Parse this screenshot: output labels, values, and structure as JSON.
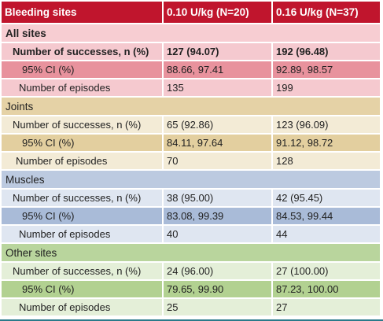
{
  "header": [
    "Bleeding sites",
    "0.10 U/kg (N=20)",
    "0.16 U/kg (N=37)"
  ],
  "sections": [
    {
      "title": "All sites",
      "title_bold": true,
      "colors": {
        "section": "#f7cdd2",
        "rows": [
          "#f5c9cf",
          "#e8929d",
          "#f5c9cf"
        ]
      },
      "rows": [
        {
          "label": "Number of successes, n (%)",
          "v1": "127 (94.07)",
          "v2": "192 (96.48)",
          "bold": true,
          "indent": 14
        },
        {
          "label": "95% CI (%)",
          "v1": "88.66, 97.41",
          "v2": "92.89, 98.57",
          "bold": false,
          "indent": 26
        },
        {
          "label": "Number of episodes",
          "v1": "135",
          "v2": "199",
          "bold": false,
          "indent": 22
        }
      ]
    },
    {
      "title": "Joints",
      "title_bold": false,
      "colors": {
        "section": "#e5d2a6",
        "rows": [
          "#f3ebd6",
          "#e3cf9f",
          "#f3ebd6"
        ]
      },
      "rows": [
        {
          "label": "Number of successes,  n (%)",
          "v1": "65 (92.86)",
          "v2": "123 (96.09)",
          "bold": false,
          "indent": 14
        },
        {
          "label": "95% CI (%)",
          "v1": "84.11, 97.64",
          "v2": "91.12, 98.72",
          "bold": false,
          "indent": 26
        },
        {
          "label": "Number of episodes",
          "v1": "70",
          "v2": "128",
          "bold": false,
          "indent": 18
        }
      ]
    },
    {
      "title": "Muscles",
      "title_bold": false,
      "colors": {
        "section": "#bccae0",
        "rows": [
          "#dfe6f1",
          "#a9bbd8",
          "#dfe6f1"
        ]
      },
      "rows": [
        {
          "label": "Number of successes, n (%)",
          "v1": "38 (95.00)",
          "v2": "42 (95.45)",
          "bold": false,
          "indent": 14
        },
        {
          "label": "95% CI (%)",
          "v1": "83.08, 99.39",
          "v2": "84.53, 99.44",
          "bold": false,
          "indent": 26
        },
        {
          "label": "Number of episodes",
          "v1": "40",
          "v2": "44",
          "bold": false,
          "indent": 22
        }
      ]
    },
    {
      "title": "Other sites",
      "title_bold": false,
      "colors": {
        "section": "#b9d59d",
        "rows": [
          "#e4efd8",
          "#b2d191",
          "#e4efd8"
        ]
      },
      "rows": [
        {
          "label": "Number of successes, n (%)",
          "v1": "24 (96.00)",
          "v2": "27 (100.00)",
          "bold": false,
          "indent": 14
        },
        {
          "label": "95% CI (%)",
          "v1": "79.65, 99.90",
          "v2": "87.23, 100.00",
          "bold": false,
          "indent": 26
        },
        {
          "label": "Number of episodes",
          "v1": "25",
          "v2": "27",
          "bold": false,
          "indent": 22
        }
      ]
    }
  ]
}
